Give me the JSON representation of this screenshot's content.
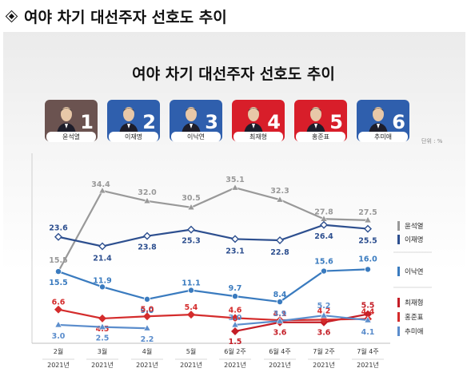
{
  "header": {
    "title": "여야 차기 대선주자 선호도 추이"
  },
  "chart_title": "여야 차기 대선주자 선호도 추이",
  "unit_label": "단위 : %",
  "candidates": [
    {
      "number": "1",
      "name": "윤석열",
      "color": "#6b5350"
    },
    {
      "number": "2",
      "name": "이재명",
      "color": "#2f5fad"
    },
    {
      "number": "3",
      "name": "이낙연",
      "color": "#2f5fad"
    },
    {
      "number": "4",
      "name": "최재형",
      "color": "#d81e2a"
    },
    {
      "number": "5",
      "name": "홍준표",
      "color": "#d81e2a"
    },
    {
      "number": "6",
      "name": "추미애",
      "color": "#2f5fad"
    }
  ],
  "chart_data": {
    "type": "line",
    "title": "여야 차기 대선주자 선호도 추이",
    "categories": [
      {
        "label": "2월",
        "year": "2021년"
      },
      {
        "label": "3월",
        "year": "2021년"
      },
      {
        "label": "4월",
        "year": "2021년"
      },
      {
        "label": "5월",
        "year": "2021년"
      },
      {
        "label": "6월 2주",
        "year": "2021년"
      },
      {
        "label": "6월 4주",
        "year": "2021년"
      },
      {
        "label": "7월 2주",
        "year": "2021년"
      },
      {
        "label": "7월 4주",
        "year": "2021년"
      }
    ],
    "series": [
      {
        "name": "윤석열",
        "color": "#999999",
        "marker": "triangle",
        "values": [
          15.5,
          34.4,
          32.0,
          30.5,
          35.1,
          32.3,
          27.8,
          27.5
        ],
        "labels": [
          "15.5",
          "34.4",
          "32.0",
          "30.5",
          "35.1",
          "32.3",
          "27.8",
          "27.5"
        ]
      },
      {
        "name": "이재명",
        "color": "#2d4f8f",
        "marker": "diamond",
        "values": [
          23.6,
          21.4,
          23.8,
          25.3,
          23.1,
          22.8,
          26.4,
          25.5
        ],
        "labels": [
          "23.6",
          "21.4",
          "23.8",
          "25.3",
          "23.1",
          "22.8",
          "26.4",
          "25.5"
        ]
      },
      {
        "name": "이낙연",
        "color": "#3a7bbf",
        "marker": "circle",
        "values": [
          15.5,
          11.9,
          9.0,
          11.1,
          9.7,
          8.4,
          15.6,
          16.0
        ],
        "labels": [
          "15.5",
          "11.9",
          "9.0",
          "11.1",
          "9.7",
          "8.4",
          "15.6",
          "16.0"
        ]
      },
      {
        "name": "최재형",
        "color": "#c41d26",
        "marker": "diamond",
        "values": [
          null,
          null,
          null,
          null,
          1.5,
          3.6,
          3.6,
          5.5
        ],
        "labels": [
          null,
          null,
          null,
          null,
          "1.5",
          "3.6",
          "3.6",
          "5.5"
        ]
      },
      {
        "name": "홍준표",
        "color": "#d42c2c",
        "marker": "diamond",
        "values": [
          6.6,
          4.5,
          5.0,
          5.4,
          4.6,
          4.1,
          4.2,
          4.4
        ],
        "labels": [
          "6.6",
          "4.5",
          "5.0",
          "5.4",
          "4.6",
          "4.1",
          "4.2",
          "4.4"
        ]
      },
      {
        "name": "추미애",
        "color": "#5b8dcc",
        "marker": "triangle",
        "values": [
          3.0,
          2.5,
          2.2,
          null,
          3.0,
          3.9,
          5.2,
          4.1
        ],
        "labels": [
          "3.0",
          "2.5",
          "2.2",
          null,
          "3.0",
          "3.9",
          "5.2",
          "4.1"
        ]
      }
    ],
    "legend": [
      "윤석열",
      "이재명",
      "이낙연",
      "최재형",
      "홍준표",
      "추미애"
    ],
    "legend_colors": [
      "#999999",
      "#2d4f8f",
      "#3a7bbf",
      "#c41d26",
      "#d42c2c",
      "#5b8dcc"
    ],
    "legend_groups": [
      [
        "윤석열",
        "이재명"
      ],
      [
        "이낙연"
      ],
      [
        "최재형",
        "홍준표",
        "추미애"
      ]
    ],
    "legend_placement": "right",
    "grid": false
  }
}
